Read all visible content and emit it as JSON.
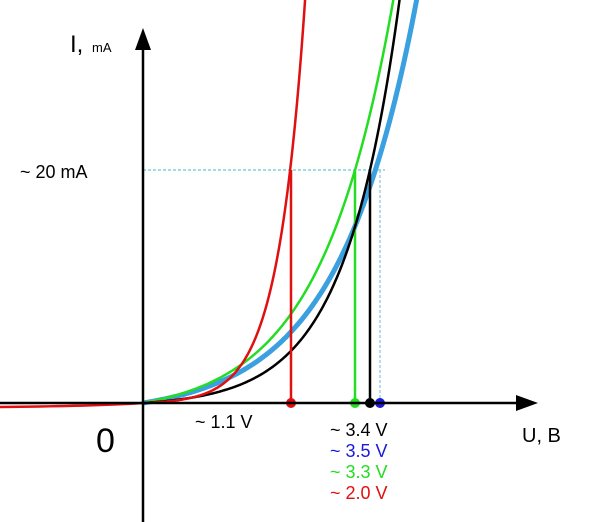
{
  "axes": {
    "y_label": "I,",
    "y_unit": "mA",
    "x_label": "U, B",
    "origin": "0"
  },
  "current_level": "~ 20 mA",
  "knee_voltage": "~ 1.1 V",
  "curves": [
    {
      "label": "~ 3.4 V",
      "color": "#000000"
    },
    {
      "label": "~ 3.5 V",
      "color": "#1a1adc"
    },
    {
      "label": "~ 3.3 V",
      "color": "#22dd22"
    },
    {
      "label": "~ 2.0 V",
      "color": "#e01010"
    }
  ]
}
